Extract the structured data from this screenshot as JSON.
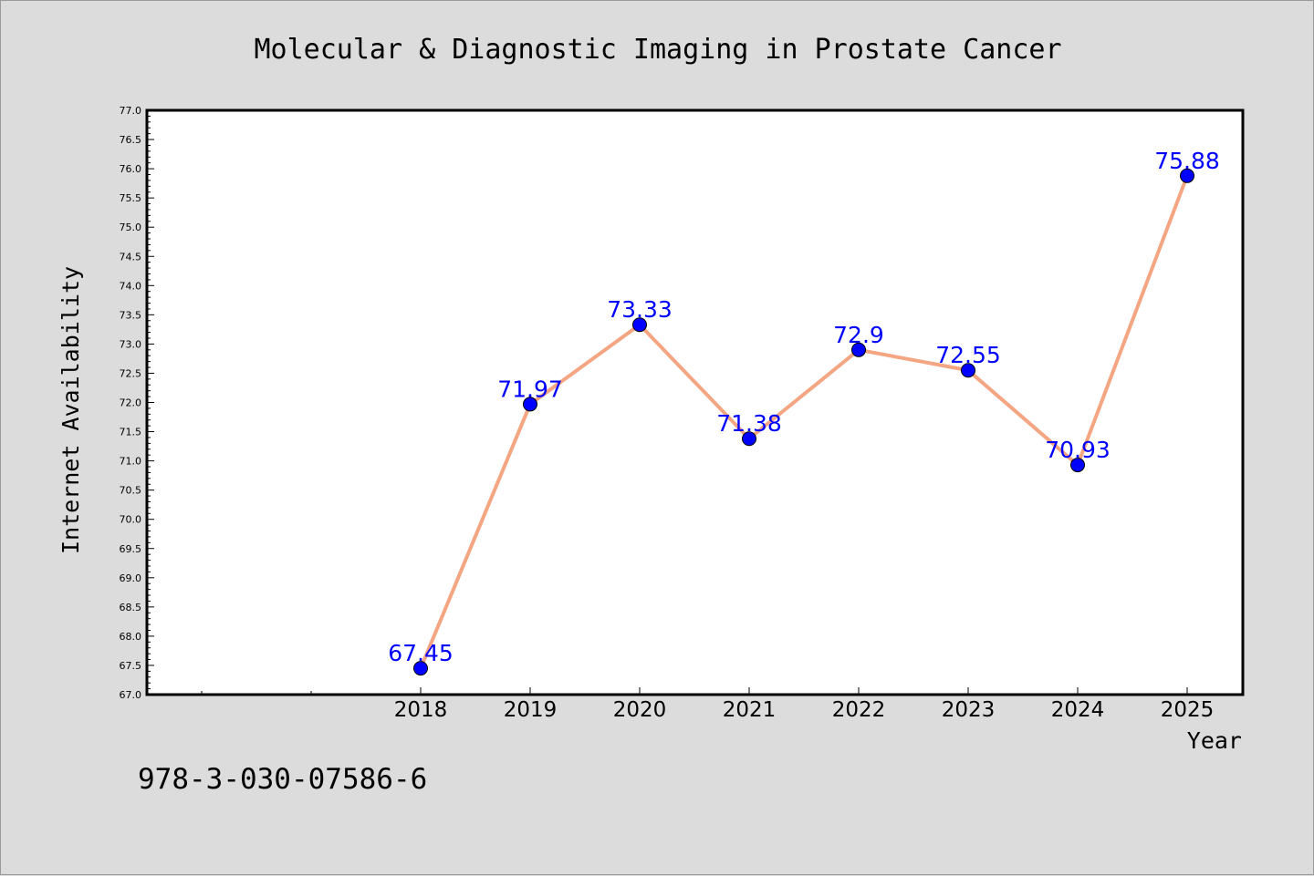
{
  "chart_data": {
    "type": "line",
    "title": "Molecular & Diagnostic Imaging in Prostate Cancer",
    "xlabel": "Year",
    "ylabel": "Internet Availability",
    "categories": [
      "2018",
      "2019",
      "2020",
      "2021",
      "2022",
      "2023",
      "2024",
      "2025"
    ],
    "values": [
      67.45,
      71.97,
      73.33,
      71.38,
      72.9,
      72.55,
      70.93,
      75.88
    ],
    "data_labels": [
      "67.45",
      "71.97",
      "73.33",
      "71.38",
      "72.9",
      "72.55",
      "70.93",
      "75.88"
    ],
    "ylim": [
      67.0,
      77.0
    ],
    "y_ticks": [
      "67.0",
      "67.5",
      "68.0",
      "68.5",
      "69.0",
      "69.5",
      "70.0",
      "70.5",
      "71.0",
      "71.5",
      "72.0",
      "72.5",
      "73.0",
      "73.5",
      "74.0",
      "74.5",
      "75.0",
      "75.5",
      "76.0",
      "76.5",
      "77.0"
    ],
    "grid": false,
    "legend": "none",
    "line_color": "#f4a582",
    "marker_color": "#0000ff",
    "label_color": "#0000ff"
  },
  "footer": {
    "isbn": "978-3-030-07586-6"
  },
  "colors": {
    "background": "#dcdcdc",
    "plot_background": "#ffffff"
  }
}
